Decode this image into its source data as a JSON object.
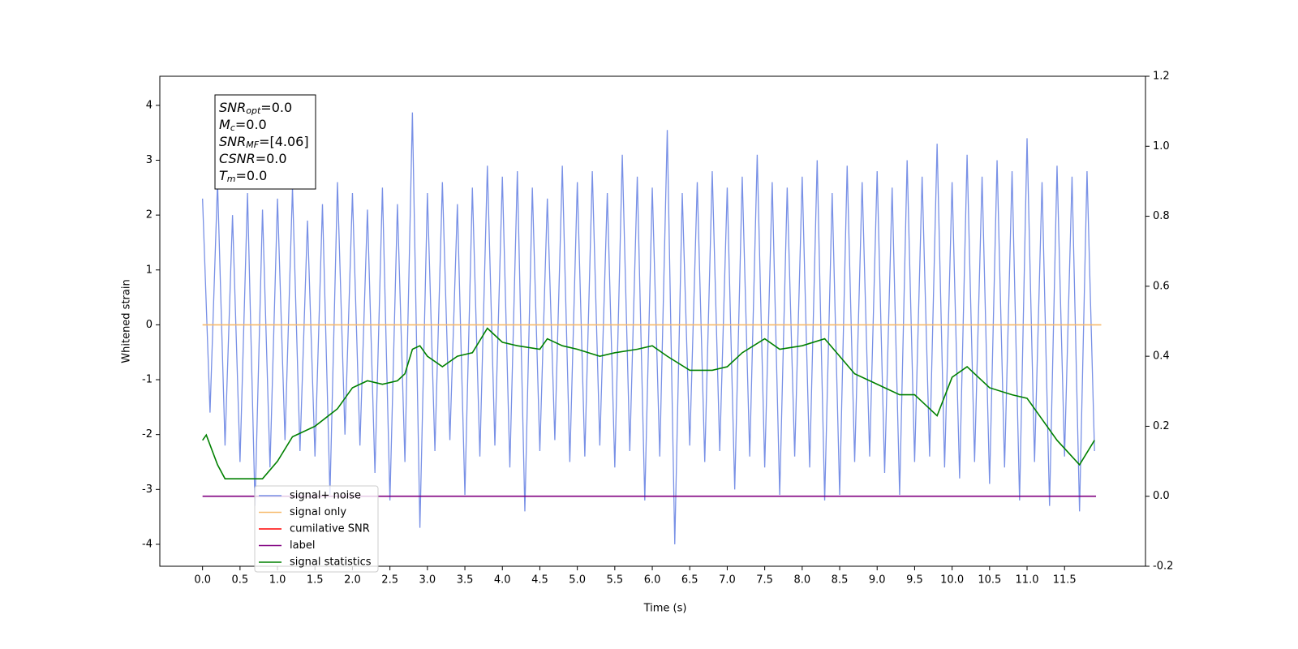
{
  "chart_data": {
    "type": "line",
    "xlabel": "Time (s)",
    "ylabel": "Whitened strain",
    "xlim": [
      -0.57,
      12.58
    ],
    "ylim": [
      -4.4,
      4.53
    ],
    "y2lim": [
      -0.2,
      1.2
    ],
    "xticks": [
      {
        "value": 0,
        "label": "0.0"
      },
      {
        "value": 0.5,
        "label": "0.5"
      },
      {
        "value": 1,
        "label": "1.0"
      },
      {
        "value": 1.5,
        "label": "1.5"
      },
      {
        "value": 2,
        "label": "2.0"
      },
      {
        "value": 2.5,
        "label": "2.5"
      },
      {
        "value": 3,
        "label": "3.0"
      },
      {
        "value": 3.5,
        "label": "3.5"
      },
      {
        "value": 4,
        "label": "4.0"
      },
      {
        "value": 4.5,
        "label": "4.5"
      },
      {
        "value": 5,
        "label": "5.0"
      },
      {
        "value": 5.5,
        "label": "5.5"
      },
      {
        "value": 6,
        "label": "6.0"
      },
      {
        "value": 6.5,
        "label": "6.5"
      },
      {
        "value": 7,
        "label": "7.0"
      },
      {
        "value": 7.5,
        "label": "7.5"
      },
      {
        "value": 8,
        "label": "8.0"
      },
      {
        "value": 8.5,
        "label": "8.5"
      },
      {
        "value": 9,
        "label": "9.0"
      },
      {
        "value": 9.5,
        "label": "9.5"
      },
      {
        "value": 10,
        "label": "10.0"
      },
      {
        "value": 10.5,
        "label": "10.5"
      },
      {
        "value": 11,
        "label": "11.0"
      },
      {
        "value": 11.5,
        "label": "11.5"
      }
    ],
    "yticks": [
      -4,
      -3,
      -2,
      -1,
      0,
      1,
      2,
      3,
      4
    ],
    "y2ticks": [
      -0.2,
      {
        "value": 0,
        "label": "0.0"
      },
      0.2,
      0.4,
      0.6,
      0.8,
      {
        "value": 1,
        "label": "1.0"
      },
      1.2
    ],
    "legend": "lower left",
    "annotation": [
      {
        "main": "SNR",
        "sub": "opt",
        "rest": "=0.0"
      },
      {
        "main": "M",
        "sub": "c",
        "rest": "=0.0"
      },
      {
        "main": "SNR",
        "sub": "MF",
        "rest": "=[4.06]"
      },
      {
        "main": "CSNR",
        "rest": "=0.0"
      },
      {
        "main": "T",
        "sub": "m",
        "rest": "=0.0"
      }
    ],
    "series": [
      {
        "name": "signal+ noise",
        "color": "#7890e6",
        "x": [
          0,
          0.1,
          0.2,
          0.3,
          0.4,
          0.5,
          0.6,
          0.7,
          0.8,
          0.9,
          1,
          1.1,
          1.2,
          1.3,
          1.4,
          1.5,
          1.6,
          1.7,
          1.8,
          1.9,
          2,
          2.1,
          2.2,
          2.3,
          2.4,
          2.5,
          2.6,
          2.7,
          2.8,
          2.9,
          3,
          3.1,
          3.2,
          3.3,
          3.4,
          3.5,
          3.6,
          3.7,
          3.8,
          3.9,
          4,
          4.1,
          4.2,
          4.3,
          4.4,
          4.5,
          4.6,
          4.7,
          4.8,
          4.9,
          5,
          5.1,
          5.2,
          5.3,
          5.4,
          5.5,
          5.6,
          5.7,
          5.8,
          5.9,
          6,
          6.1,
          6.2,
          6.3,
          6.4,
          6.5,
          6.6,
          6.7,
          6.8,
          6.9,
          7,
          7.1,
          7.2,
          7.3,
          7.4,
          7.5,
          7.6,
          7.7,
          7.8,
          7.9,
          8,
          8.1,
          8.2,
          8.3,
          8.4,
          8.5,
          8.6,
          8.7,
          8.8,
          8.9,
          9,
          9.1,
          9.2,
          9.3,
          9.4,
          9.5,
          9.6,
          9.7,
          9.8,
          9.9,
          10,
          10.1,
          10.2,
          10.3,
          10.4,
          10.5,
          10.6,
          10.7,
          10.8,
          10.9,
          11,
          11.1,
          11.2,
          11.3,
          11.4,
          11.5,
          11.6,
          11.7,
          11.8,
          11.9
        ],
        "values": [
          2.3,
          -1.6,
          2.6,
          -2.2,
          2.0,
          -2.5,
          2.4,
          -3.3,
          2.1,
          -2.6,
          2.3,
          -2.1,
          2.5,
          -2.3,
          1.9,
          -2.4,
          2.2,
          -3.1,
          2.6,
          -2.0,
          2.4,
          -2.2,
          2.1,
          -2.7,
          2.5,
          -3.2,
          2.2,
          -2.5,
          3.87,
          -3.7,
          2.4,
          -2.3,
          2.6,
          -2.1,
          2.2,
          -3.1,
          2.5,
          -2.4,
          2.9,
          -2.2,
          2.7,
          -2.6,
          2.8,
          -3.4,
          2.5,
          -2.3,
          2.3,
          -2.1,
          2.9,
          -2.5,
          2.6,
          -2.4,
          2.8,
          -2.2,
          2.4,
          -2.6,
          3.1,
          -2.3,
          2.7,
          -3.2,
          2.5,
          -2.4,
          3.55,
          -4.0,
          2.4,
          -2.2,
          2.6,
          -2.5,
          2.8,
          -2.3,
          2.5,
          -3.0,
          2.7,
          -2.4,
          3.1,
          -2.6,
          2.6,
          -3.1,
          2.5,
          -2.4,
          2.7,
          -2.6,
          3.0,
          -3.2,
          2.4,
          -3.1,
          2.9,
          -2.5,
          2.6,
          -2.4,
          2.8,
          -2.7,
          2.5,
          -3.1,
          3.0,
          -2.5,
          2.7,
          -2.4,
          3.3,
          -2.6,
          2.6,
          -2.8,
          3.1,
          -2.5,
          2.7,
          -2.9,
          3.0,
          -2.6,
          2.8,
          -3.2,
          3.4,
          -2.5,
          2.6,
          -3.3,
          2.9,
          -2.4,
          2.7,
          -3.4,
          2.8,
          -2.3
        ]
      },
      {
        "name": "signal only",
        "color": "#f7b96a",
        "x": [
          0,
          11.99
        ],
        "values": [
          0,
          0
        ]
      },
      {
        "name": "cumilative SNR",
        "color": "#ff0000",
        "x": [],
        "values": []
      },
      {
        "name": "label",
        "color": "#800080",
        "axis": "y2",
        "x": [
          0,
          11.92
        ],
        "values": [
          0,
          0
        ]
      },
      {
        "name": "signal statistics",
        "color": "#008000",
        "axis": "y2",
        "x": [
          0,
          0.05,
          0.2,
          0.3,
          0.4,
          0.6,
          0.8,
          1.0,
          1.2,
          1.5,
          1.8,
          2.0,
          2.2,
          2.4,
          2.6,
          2.7,
          2.8,
          2.9,
          3.0,
          3.2,
          3.4,
          3.6,
          3.8,
          3.9,
          4.0,
          4.2,
          4.5,
          4.6,
          4.8,
          5.0,
          5.3,
          5.5,
          5.8,
          6.0,
          6.2,
          6.5,
          6.8,
          7.0,
          7.2,
          7.5,
          7.7,
          8.0,
          8.3,
          8.5,
          8.7,
          9.0,
          9.3,
          9.5,
          9.8,
          10.0,
          10.2,
          10.5,
          10.8,
          11.0,
          11.2,
          11.4,
          11.7,
          11.9
        ],
        "values": [
          0.16,
          0.175,
          0.09,
          0.05,
          0.05,
          0.05,
          0.05,
          0.1,
          0.17,
          0.2,
          0.25,
          0.31,
          0.33,
          0.32,
          0.33,
          0.35,
          0.42,
          0.43,
          0.4,
          0.37,
          0.4,
          0.41,
          0.48,
          0.46,
          0.44,
          0.43,
          0.42,
          0.45,
          0.43,
          0.42,
          0.4,
          0.41,
          0.42,
          0.43,
          0.4,
          0.36,
          0.36,
          0.37,
          0.41,
          0.45,
          0.42,
          0.43,
          0.45,
          0.4,
          0.35,
          0.32,
          0.29,
          0.29,
          0.23,
          0.34,
          0.37,
          0.31,
          0.29,
          0.28,
          0.22,
          0.16,
          0.09,
          0.16
        ]
      }
    ]
  }
}
